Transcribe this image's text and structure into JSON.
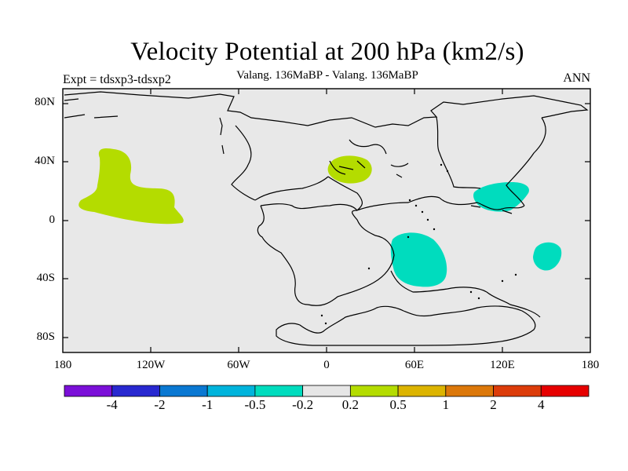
{
  "plot": {
    "title": "Velocity Potential at 200 hPa (km2/s)",
    "subtitle": "Valang. 136MaBP - Valang. 136MaBP",
    "left_label": "Expt = tdsxp3-tdsxp2",
    "right_label": "ANN"
  },
  "axes": {
    "y_ticks": [
      "80N",
      "40N",
      "0",
      "40S",
      "80S"
    ],
    "x_ticks": [
      "180",
      "120W",
      "60W",
      "0",
      "60E",
      "120E",
      "180"
    ]
  },
  "colorbar": {
    "colors": [
      "#7b0fd8",
      "#2828d0",
      "#0a78d2",
      "#00b4dc",
      "#00dcbe",
      "#e6e6e6",
      "#b4dc00",
      "#dcb400",
      "#dc780a",
      "#dc3c0a",
      "#e60000"
    ],
    "labels": [
      "-4",
      "-2",
      "-1",
      "-0.5",
      "-0.2",
      "0.2",
      "0.5",
      "1",
      "2",
      "4"
    ]
  },
  "colors": {
    "background": "#e8e8e8",
    "positive_fill": "#b4dc00",
    "negative_fill": "#00dcbe",
    "coastline": "#000000"
  }
}
